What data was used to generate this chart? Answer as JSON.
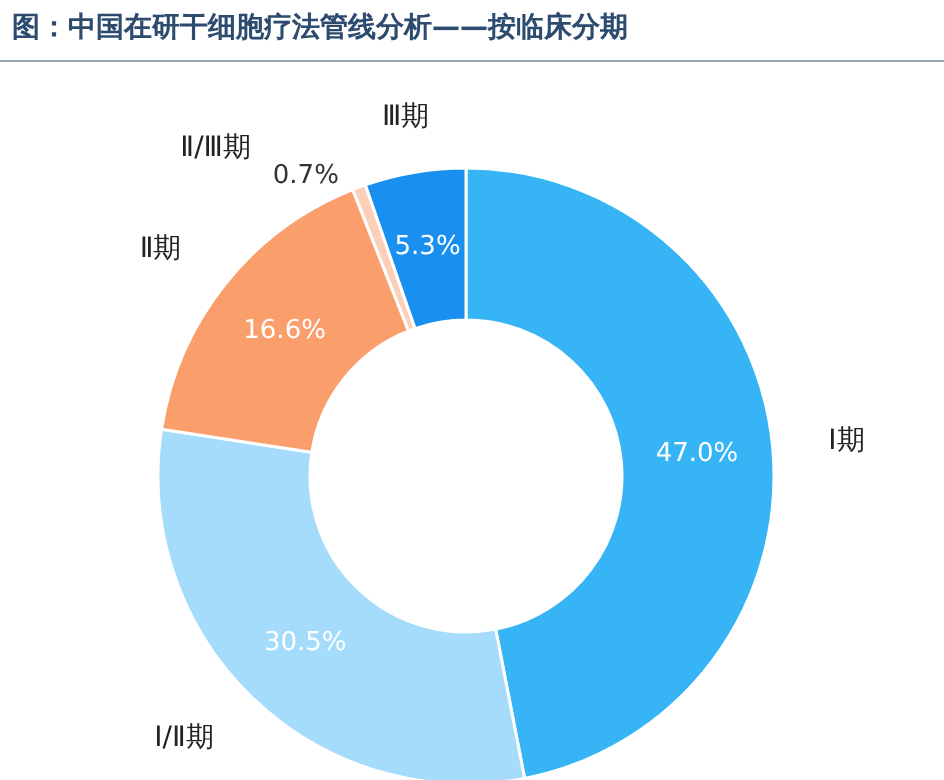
{
  "chart_data": {
    "type": "donut",
    "title": "图：中国在研干细胞疗法管线分析——按临床分期",
    "categories": [
      "Ⅰ期",
      "Ⅰ/Ⅱ期",
      "Ⅱ期",
      "Ⅱ/Ⅲ期",
      "Ⅲ期"
    ],
    "values": [
      47.0,
      30.5,
      16.6,
      0.7,
      5.3
    ],
    "value_labels": [
      "47.0%",
      "30.5%",
      "16.6%",
      "0.7%",
      "5.3%"
    ],
    "colors": [
      "#36b4f6",
      "#a5dcfb",
      "#fa9e6c",
      "#fcd0b8",
      "#1990ef"
    ]
  }
}
